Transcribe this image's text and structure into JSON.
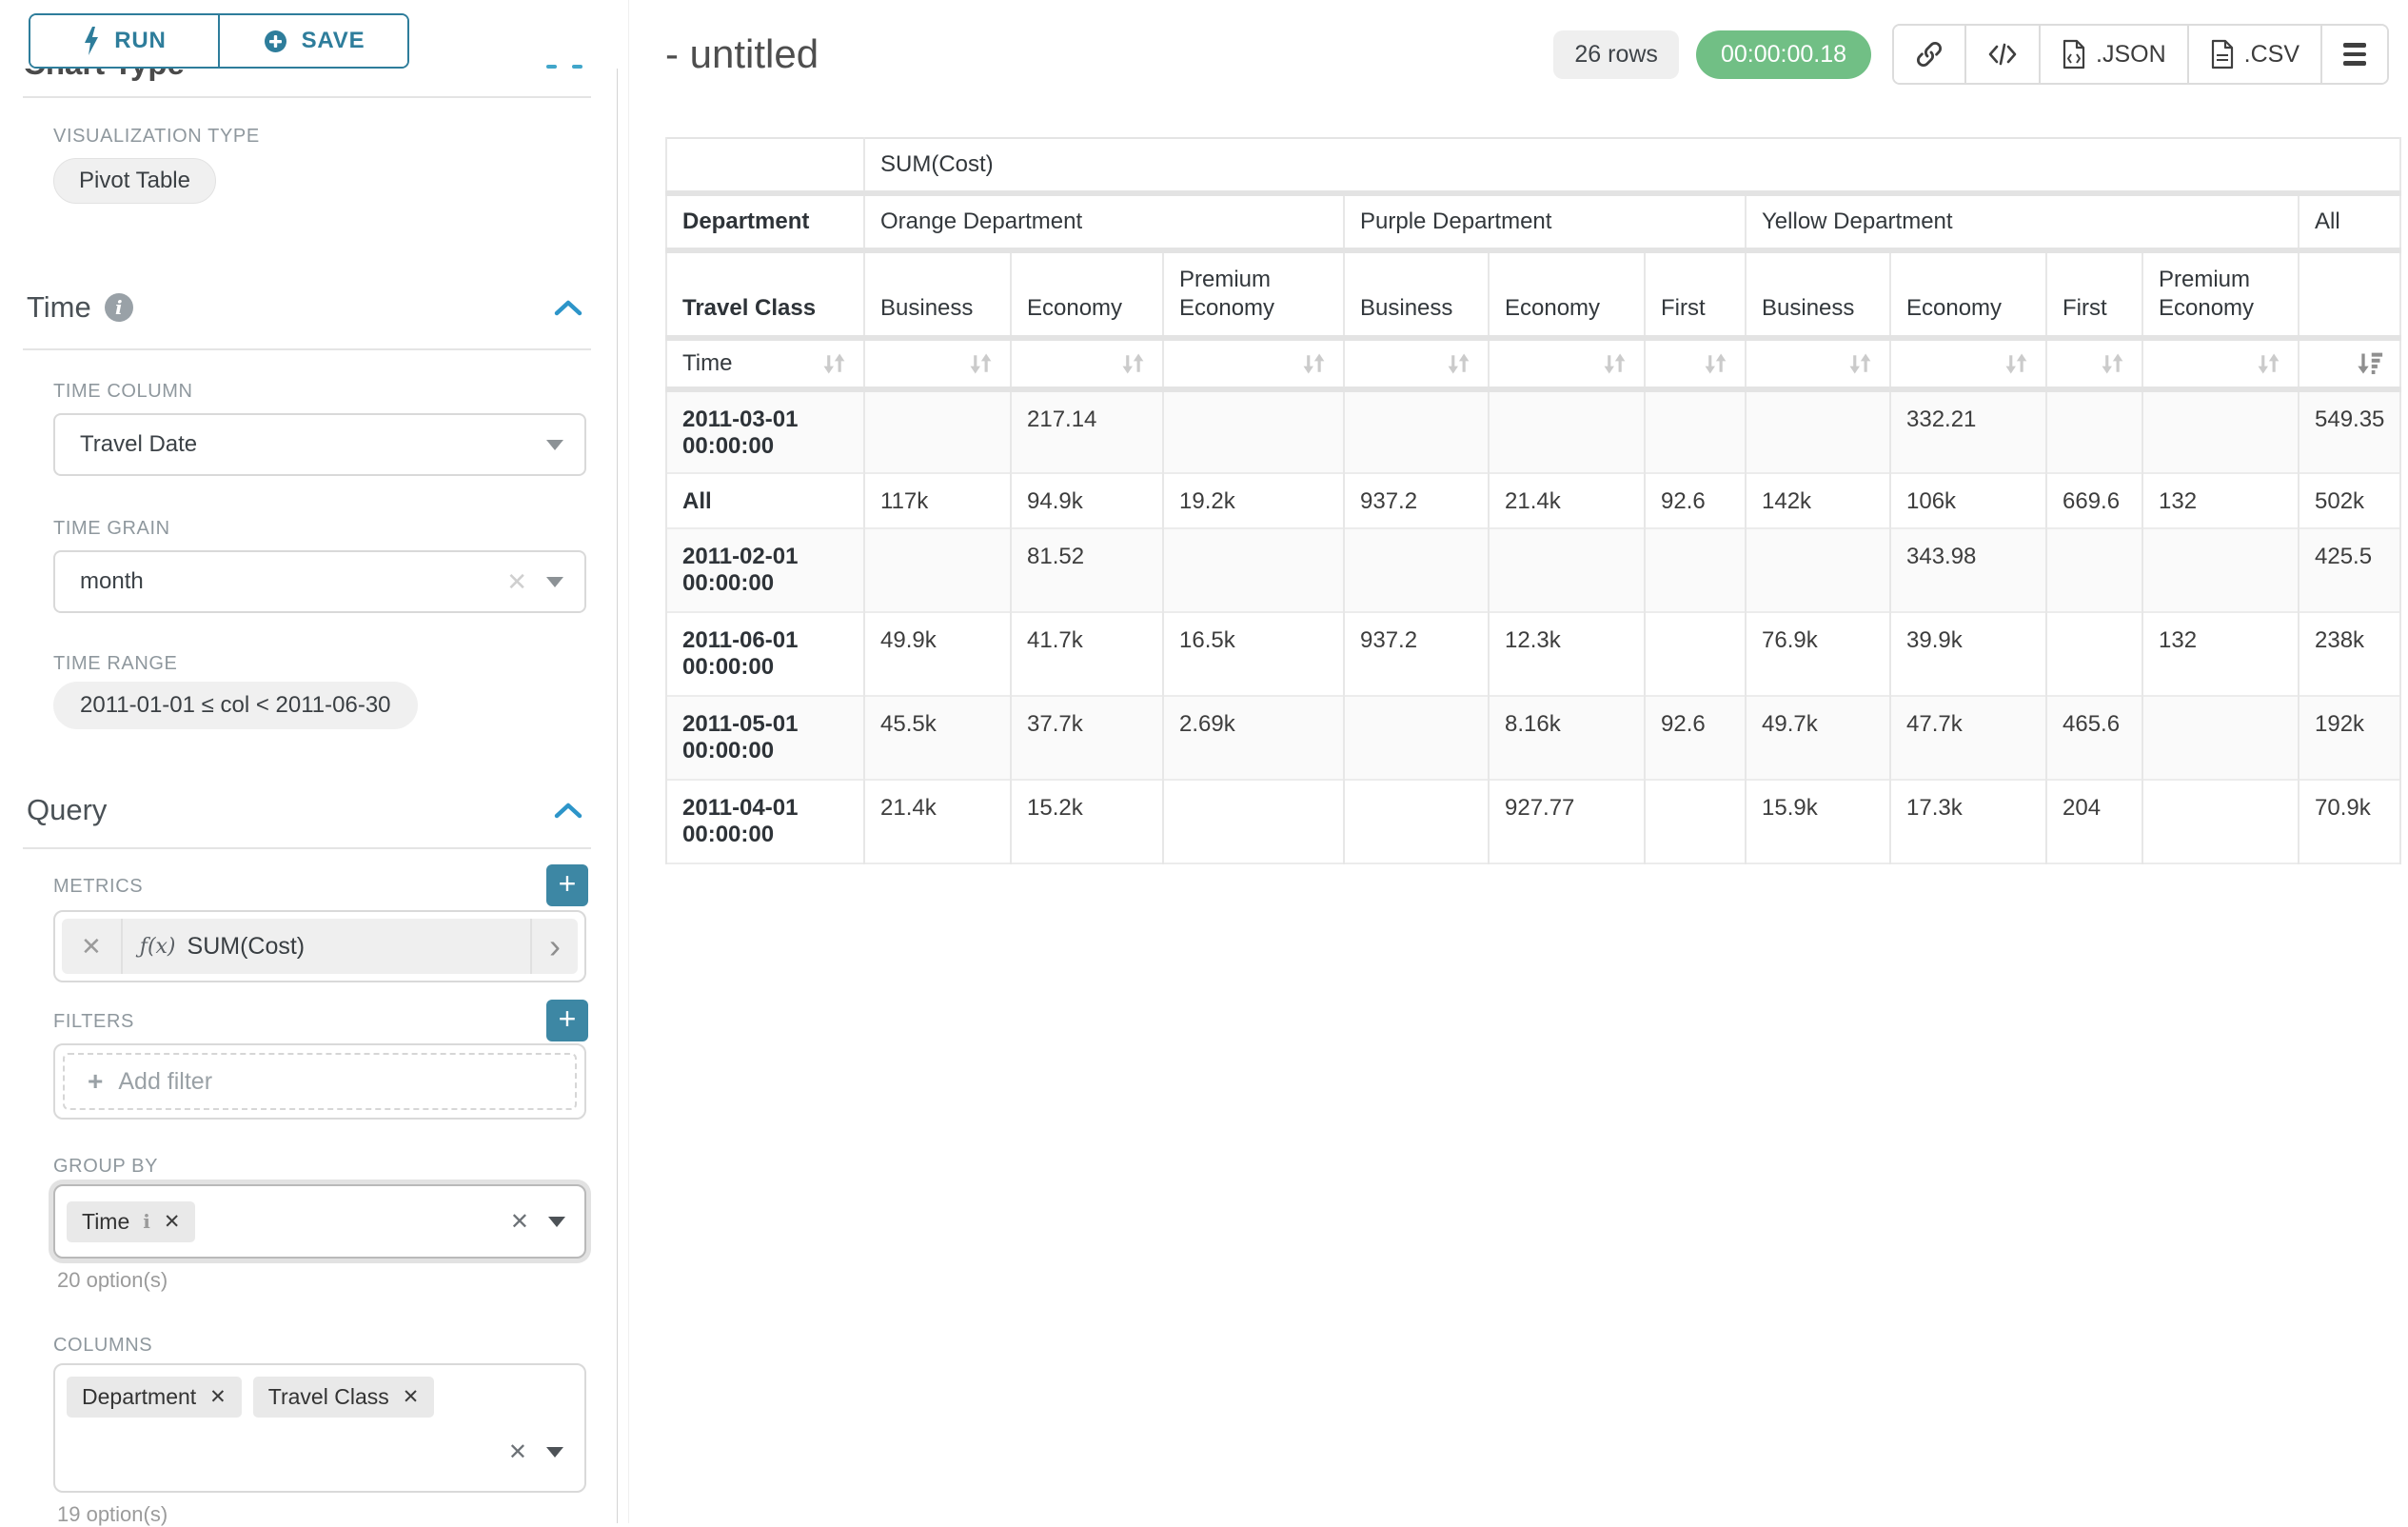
{
  "icons": {
    "close": "✕",
    "chevron_right": "›",
    "info": "i",
    "plus": "+",
    "code": "</>"
  },
  "colors": {
    "accent_teal": "#2e7d9b",
    "plus_button_teal": "#3d87a4",
    "timer_green": "#71bf85"
  },
  "sidebar": {
    "run_button": "RUN",
    "save_button": "SAVE",
    "chart_type": {
      "heading": "Chart Type",
      "viz_type_label": "VISUALIZATION TYPE",
      "viz_type_value": "Pivot Table"
    },
    "time": {
      "heading": "Time",
      "time_column_label": "TIME COLUMN",
      "time_column_value": "Travel Date",
      "time_grain_label": "TIME GRAIN",
      "time_grain_value": "month",
      "time_range_label": "TIME RANGE",
      "time_range_value": "2011-01-01 ≤ col < 2011-06-30"
    },
    "query": {
      "heading": "Query",
      "metrics_label": "METRICS",
      "metric": {
        "fx": "ƒ(x)",
        "name": "SUM(Cost)"
      },
      "filters_label": "FILTERS",
      "add_filter_placeholder": "Add filter",
      "group_by_label": "GROUP BY",
      "group_by_values": [
        "Time"
      ],
      "group_by_hint": "20 option(s)",
      "columns_label": "COLUMNS",
      "columns_values": [
        "Department",
        "Travel Class"
      ],
      "columns_hint": "19 option(s)"
    }
  },
  "header": {
    "title": "- untitled",
    "row_count_badge": "26 rows",
    "timer_badge": "00:00:00.18",
    "toolbar": {
      "json_label": ".JSON",
      "csv_label": ".CSV"
    }
  },
  "pivot_table": {
    "metric_header": "SUM(Cost)",
    "corner_row2_label": "Department",
    "corner_row3_label": "Travel Class",
    "corner_row4_label": "Time",
    "column_groups": [
      {
        "name": "Orange Department",
        "columns": [
          "Business",
          "Economy",
          "Premium Economy"
        ]
      },
      {
        "name": "Purple Department",
        "columns": [
          "Business",
          "Economy",
          "First"
        ]
      },
      {
        "name": "Yellow Department",
        "columns": [
          "Business",
          "Economy",
          "First",
          "Premium Economy"
        ]
      },
      {
        "name": "All",
        "columns": [
          ""
        ]
      }
    ],
    "sort": {
      "sorted_column": "All",
      "direction": "desc"
    },
    "rows": [
      {
        "label": "2011-03-01 00:00:00",
        "values": [
          "",
          "217.14",
          "",
          "",
          "",
          "",
          "",
          "332.21",
          "",
          "",
          "549.35"
        ]
      },
      {
        "label": "All",
        "values": [
          "117k",
          "94.9k",
          "19.2k",
          "937.2",
          "21.4k",
          "92.6",
          "142k",
          "106k",
          "669.6",
          "132",
          "502k"
        ]
      },
      {
        "label": "2011-02-01 00:00:00",
        "values": [
          "",
          "81.52",
          "",
          "",
          "",
          "",
          "",
          "343.98",
          "",
          "",
          "425.5"
        ]
      },
      {
        "label": "2011-06-01 00:00:00",
        "values": [
          "49.9k",
          "41.7k",
          "16.5k",
          "937.2",
          "12.3k",
          "",
          "76.9k",
          "39.9k",
          "",
          "132",
          "238k"
        ]
      },
      {
        "label": "2011-05-01 00:00:00",
        "values": [
          "45.5k",
          "37.7k",
          "2.69k",
          "",
          "8.16k",
          "92.6",
          "49.7k",
          "47.7k",
          "465.6",
          "",
          "192k"
        ]
      },
      {
        "label": "2011-04-01 00:00:00",
        "values": [
          "21.4k",
          "15.2k",
          "",
          "",
          "927.77",
          "",
          "15.9k",
          "17.3k",
          "204",
          "",
          "70.9k"
        ]
      }
    ]
  }
}
